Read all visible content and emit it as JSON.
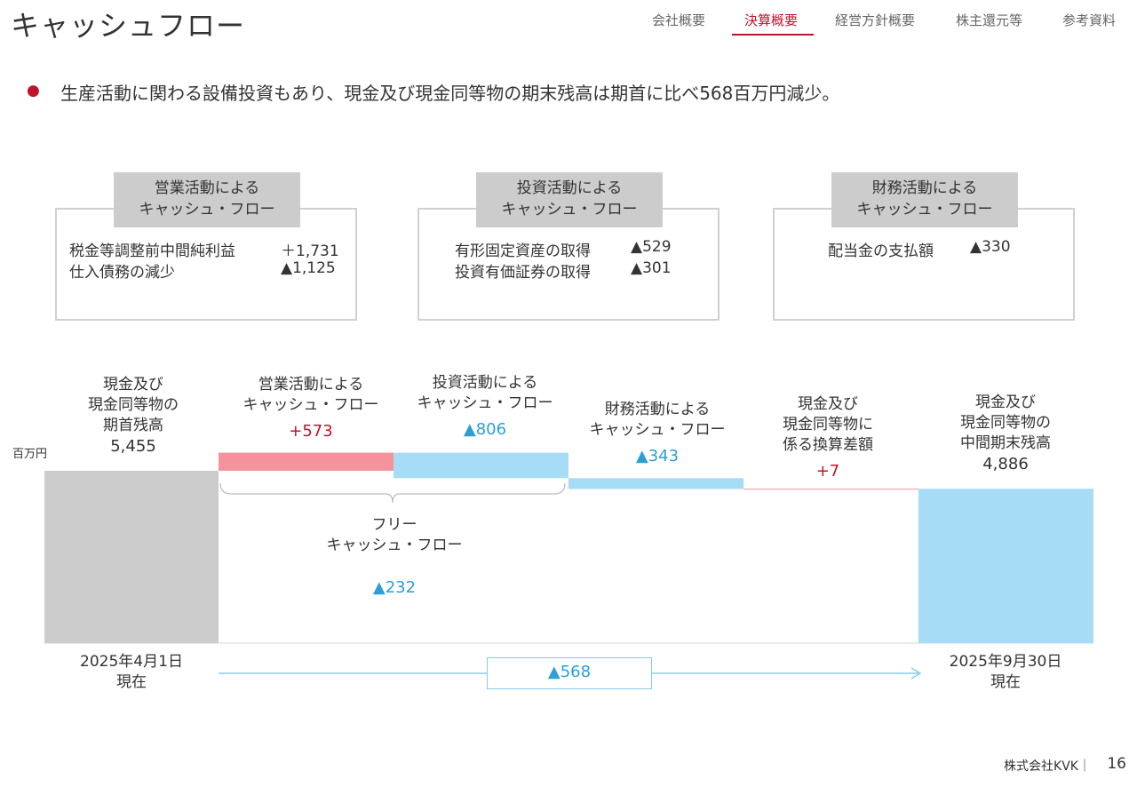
{
  "page": {
    "title": "キャッシュフロー"
  },
  "nav": {
    "items": [
      "会社概要",
      "決算概要",
      "経営方針概要",
      "株主還元等",
      "参考資料"
    ],
    "active": 1
  },
  "bullet": "生産活動に関わる設備投資もあり、現金及び現金同等物の期末残高は期首に比べ568百万円減少。",
  "boxes": [
    {
      "head": [
        "営業活動による",
        "キャッシュ・フロー"
      ],
      "rows": [
        {
          "label": "税金等調整前中間純利益",
          "value": "＋1,731"
        },
        {
          "label": "仕入債務の減少",
          "value": "▲1,125"
        }
      ]
    },
    {
      "head": [
        "投資活動による",
        "キャッシュ・フロー"
      ],
      "rows": [
        {
          "label": "有形固定資産の取得",
          "value": "▲529"
        },
        {
          "label": "投資有価証券の取得",
          "value": "▲301"
        }
      ]
    },
    {
      "head": [
        "財務活動による",
        "キャッシュ・フロー"
      ],
      "rows": [
        {
          "label": "配当金の支払額",
          "value": "▲330"
        }
      ]
    }
  ],
  "chart_data": {
    "type": "bar",
    "subtype": "waterfall",
    "unit_label": "百万円",
    "steps": [
      {
        "label": [
          "現金及び",
          "現金同等物の",
          "期首残高"
        ],
        "value": 5455,
        "display": "5,455",
        "kind": "total",
        "color": "#cccccc"
      },
      {
        "label": [
          "営業活動による",
          "キャッシュ・フロー"
        ],
        "value": 573,
        "display": "+573",
        "kind": "increase",
        "color": "#f4939c"
      },
      {
        "label": [
          "投資活動による",
          "キャッシュ・フロー"
        ],
        "value": -806,
        "display": "▲806",
        "kind": "decrease",
        "color": "#a6dcf5"
      },
      {
        "label": [
          "財務活動による",
          "キャッシュ・フロー"
        ],
        "value": -343,
        "display": "▲343",
        "kind": "decrease",
        "color": "#a6dcf5"
      },
      {
        "label": [
          "現金及び",
          "現金同等物に",
          "係る換算差額"
        ],
        "value": 7,
        "display": "+7",
        "kind": "increase",
        "color": "#f4939c"
      },
      {
        "label": [
          "現金及び",
          "現金同等物の",
          "中間期末残高"
        ],
        "value": 4886,
        "display": "4,886",
        "kind": "total",
        "color": "#a6dcf5"
      }
    ],
    "free_cash_flow": {
      "label": [
        "フリー",
        "キャッシュ・フロー"
      ],
      "value": -232,
      "display": "▲232"
    },
    "start_date": [
      "2025年4月1日",
      "現在"
    ],
    "end_date": [
      "2025年9月30日",
      "現在"
    ],
    "net_change": {
      "value": -568,
      "display": "▲568"
    },
    "colors": {
      "negative_text": "#2b9fd6",
      "positive_text": "#c0122b"
    }
  },
  "footer": {
    "company": "株式会社KVK｜",
    "page": "16"
  }
}
